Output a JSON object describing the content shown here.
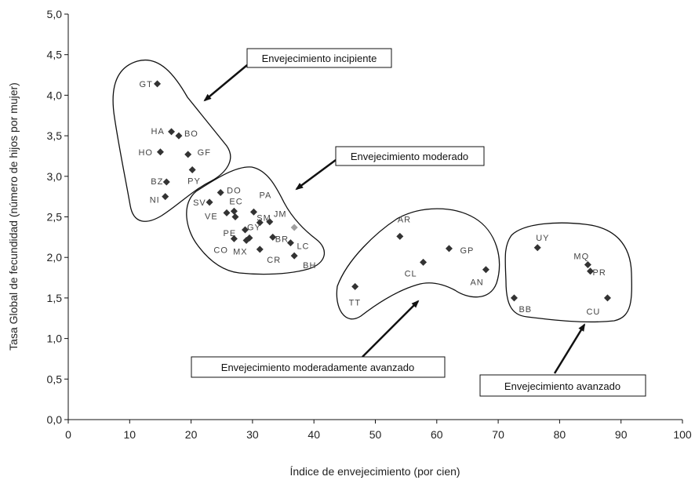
{
  "chart_data": {
    "type": "scatter",
    "xlabel": "Índice de envejecimiento (por cien)",
    "ylabel": "Tasa Global de fecundidad (número de hijos por mujer)",
    "xlim": [
      0,
      100
    ],
    "ylim": [
      0,
      5
    ],
    "x_ticks": [
      "0",
      "10",
      "20",
      "30",
      "40",
      "50",
      "60",
      "70",
      "80",
      "90",
      "100"
    ],
    "y_ticks": [
      "0,0",
      "0,5",
      "1,0",
      "1,5",
      "2,0",
      "2,5",
      "3,0",
      "3,5",
      "4,0",
      "4,5",
      "5,0"
    ],
    "grid": false,
    "marker_color": "#333333",
    "highlight_color": "#a0a0a0",
    "points": [
      {
        "label": "GT",
        "x": 14.5,
        "y": 4.14
      },
      {
        "label": "HA",
        "x": 16.8,
        "y": 3.55
      },
      {
        "label": "BO",
        "x": 18.0,
        "y": 3.5
      },
      {
        "label": "HO",
        "x": 15.0,
        "y": 3.3
      },
      {
        "label": "GF",
        "x": 19.5,
        "y": 3.27
      },
      {
        "label": "PY",
        "x": 20.2,
        "y": 3.08
      },
      {
        "label": "BZ",
        "x": 16.0,
        "y": 2.93
      },
      {
        "label": "NI",
        "x": 15.8,
        "y": 2.75
      },
      {
        "label": "DO",
        "x": 24.8,
        "y": 2.8
      },
      {
        "label": "SV",
        "x": 23.0,
        "y": 2.68
      },
      {
        "label": "EC",
        "x": 27.0,
        "y": 2.57
      },
      {
        "label": "VE",
        "x": 25.8,
        "y": 2.55
      },
      {
        "label": "PA",
        "x": 30.2,
        "y": 2.56
      },
      {
        "label": "SM",
        "x": 31.2,
        "y": 2.43
      },
      {
        "label": "JM",
        "x": 32.8,
        "y": 2.44
      },
      {
        "label": "GY",
        "x": 29.5,
        "y": 2.24
      },
      {
        "label": "PE",
        "x": 28.8,
        "y": 2.34
      },
      {
        "label": "CO",
        "x": 27.0,
        "y": 2.23
      },
      {
        "label": "MX",
        "x": 29.0,
        "y": 2.21
      },
      {
        "label": "BR",
        "x": 33.3,
        "y": 2.25
      },
      {
        "label": "LC",
        "x": 36.2,
        "y": 2.18
      },
      {
        "label": "CR",
        "x": 31.2,
        "y": 2.1
      },
      {
        "label": "BH",
        "x": 36.8,
        "y": 2.02
      },
      {
        "label": "",
        "x": 27.2,
        "y": 2.5
      },
      {
        "label": "",
        "x": 36.8,
        "y": 2.37,
        "highlight": true
      },
      {
        "label": "AR",
        "x": 54.0,
        "y": 2.26
      },
      {
        "label": "GP",
        "x": 62.0,
        "y": 2.11
      },
      {
        "label": "CL",
        "x": 57.8,
        "y": 1.94
      },
      {
        "label": "AN",
        "x": 68.0,
        "y": 1.85
      },
      {
        "label": "TT",
        "x": 46.7,
        "y": 1.64
      },
      {
        "label": "UY",
        "x": 76.4,
        "y": 2.12
      },
      {
        "label": "MQ",
        "x": 84.6,
        "y": 1.91
      },
      {
        "label": "PR",
        "x": 85.0,
        "y": 1.83
      },
      {
        "label": "BB",
        "x": 72.6,
        "y": 1.5
      },
      {
        "label": "CU",
        "x": 87.8,
        "y": 1.5
      }
    ],
    "annotations": [
      {
        "text": "Envejecimiento incipiente"
      },
      {
        "text": "Envejecimiento moderado"
      },
      {
        "text": "Envejecimiento moderadamente avanzado"
      },
      {
        "text": "Envejecimiento avanzado"
      }
    ]
  }
}
